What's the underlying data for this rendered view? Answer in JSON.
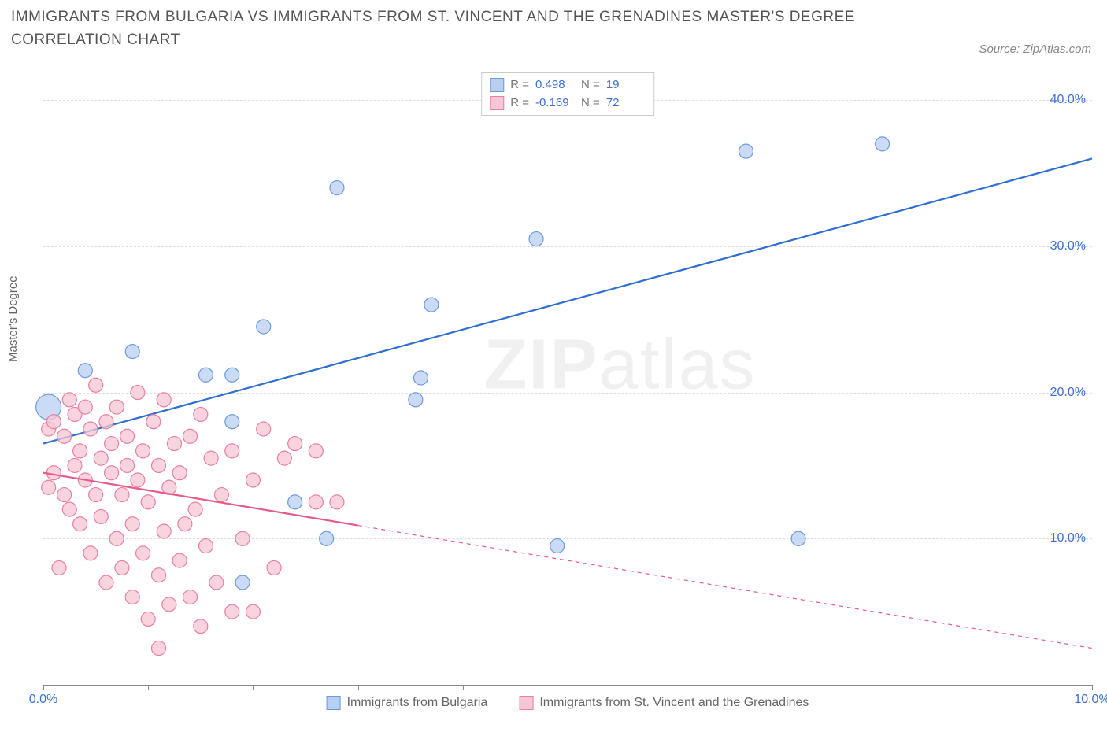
{
  "title": "IMMIGRANTS FROM BULGARIA VS IMMIGRANTS FROM ST. VINCENT AND THE GRENADINES MASTER'S DEGREE CORRELATION CHART",
  "source_label": "Source: ZipAtlas.com",
  "ylabel": "Master's Degree",
  "watermark": {
    "bold": "ZIP",
    "rest": "atlas"
  },
  "chart": {
    "type": "scatter",
    "background_color": "#ffffff",
    "grid_color": "#dddddd",
    "axis_color": "#888888",
    "xlim": [
      0,
      10
    ],
    "ylim": [
      0,
      42
    ],
    "xticks": [
      0,
      1,
      2,
      3,
      4,
      5,
      10
    ],
    "xtick_labels": {
      "0": "0.0%",
      "10": "10.0%"
    },
    "yticks": [
      10,
      20,
      30,
      40
    ],
    "ytick_labels": {
      "10": "10.0%",
      "20": "20.0%",
      "30": "30.0%",
      "40": "40.0%"
    },
    "marker_radius": 9,
    "marker_big_radius": 16,
    "line_width": 2.2,
    "series": [
      {
        "key": "bulgaria",
        "label": "Immigrants from Bulgaria",
        "color_fill": "#b9cff1",
        "color_stroke": "#6a9be0",
        "line_color": "#2f6fd0",
        "R": "0.498",
        "N": "19",
        "trend": {
          "x1": 0,
          "y1": 16.5,
          "x2": 10,
          "y2": 36.0,
          "solid_to_x": 10
        },
        "points": [
          [
            0.05,
            19.0,
            16
          ],
          [
            0.4,
            21.5,
            9
          ],
          [
            0.85,
            22.8,
            9
          ],
          [
            1.55,
            21.2,
            9
          ],
          [
            1.8,
            21.2,
            9
          ],
          [
            1.8,
            18.0,
            9
          ],
          [
            1.9,
            7.0,
            9
          ],
          [
            2.1,
            24.5,
            9
          ],
          [
            2.4,
            12.5,
            9
          ],
          [
            2.7,
            10.0,
            9
          ],
          [
            2.8,
            34.0,
            9
          ],
          [
            3.55,
            19.5,
            9
          ],
          [
            3.6,
            21.0,
            9
          ],
          [
            3.7,
            26.0,
            9
          ],
          [
            4.7,
            30.5,
            9
          ],
          [
            4.9,
            9.5,
            9
          ],
          [
            6.7,
            36.5,
            9
          ],
          [
            7.2,
            10.0,
            9
          ],
          [
            8.0,
            37.0,
            9
          ]
        ]
      },
      {
        "key": "stvincent",
        "label": "Immigrants from St. Vincent and the Grenadines",
        "color_fill": "#f7c6d4",
        "color_stroke": "#e87fa3",
        "line_color": "#e65a8a",
        "R": "-0.169",
        "N": "72",
        "trend": {
          "x1": 0,
          "y1": 14.5,
          "x2": 10,
          "y2": 2.5,
          "solid_to_x": 3.0
        },
        "points": [
          [
            0.05,
            13.5,
            9
          ],
          [
            0.05,
            17.5,
            9
          ],
          [
            0.1,
            14.5,
            9
          ],
          [
            0.1,
            18.0,
            9
          ],
          [
            0.15,
            8.0,
            9
          ],
          [
            0.2,
            13.0,
            9
          ],
          [
            0.2,
            17.0,
            9
          ],
          [
            0.25,
            19.5,
            9
          ],
          [
            0.25,
            12.0,
            9
          ],
          [
            0.3,
            15.0,
            9
          ],
          [
            0.3,
            18.5,
            9
          ],
          [
            0.35,
            11.0,
            9
          ],
          [
            0.35,
            16.0,
            9
          ],
          [
            0.4,
            14.0,
            9
          ],
          [
            0.4,
            19.0,
            9
          ],
          [
            0.45,
            9.0,
            9
          ],
          [
            0.45,
            17.5,
            9
          ],
          [
            0.5,
            13.0,
            9
          ],
          [
            0.5,
            20.5,
            9
          ],
          [
            0.55,
            15.5,
            9
          ],
          [
            0.55,
            11.5,
            9
          ],
          [
            0.6,
            18.0,
            9
          ],
          [
            0.6,
            7.0,
            9
          ],
          [
            0.65,
            14.5,
            9
          ],
          [
            0.65,
            16.5,
            9
          ],
          [
            0.7,
            10.0,
            9
          ],
          [
            0.7,
            19.0,
            9
          ],
          [
            0.75,
            13.0,
            9
          ],
          [
            0.75,
            8.0,
            9
          ],
          [
            0.8,
            15.0,
            9
          ],
          [
            0.8,
            17.0,
            9
          ],
          [
            0.85,
            6.0,
            9
          ],
          [
            0.85,
            11.0,
            9
          ],
          [
            0.9,
            14.0,
            9
          ],
          [
            0.9,
            20.0,
            9
          ],
          [
            0.95,
            9.0,
            9
          ],
          [
            0.95,
            16.0,
            9
          ],
          [
            1.0,
            4.5,
            9
          ],
          [
            1.0,
            12.5,
            9
          ],
          [
            1.05,
            18.0,
            9
          ],
          [
            1.1,
            7.5,
            9
          ],
          [
            1.1,
            15.0,
            9
          ],
          [
            1.15,
            10.5,
            9
          ],
          [
            1.15,
            19.5,
            9
          ],
          [
            1.2,
            5.5,
            9
          ],
          [
            1.2,
            13.5,
            9
          ],
          [
            1.25,
            16.5,
            9
          ],
          [
            1.3,
            8.5,
            9
          ],
          [
            1.3,
            14.5,
            9
          ],
          [
            1.35,
            11.0,
            9
          ],
          [
            1.4,
            6.0,
            9
          ],
          [
            1.4,
            17.0,
            9
          ],
          [
            1.45,
            12.0,
            9
          ],
          [
            1.5,
            4.0,
            9
          ],
          [
            1.5,
            18.5,
            9
          ],
          [
            1.55,
            9.5,
            9
          ],
          [
            1.6,
            15.5,
            9
          ],
          [
            1.65,
            7.0,
            9
          ],
          [
            1.7,
            13.0,
            9
          ],
          [
            1.8,
            5.0,
            9
          ],
          [
            1.8,
            16.0,
            9
          ],
          [
            1.9,
            10.0,
            9
          ],
          [
            2.0,
            5.0,
            9
          ],
          [
            2.0,
            14.0,
            9
          ],
          [
            2.1,
            17.5,
            9
          ],
          [
            2.2,
            8.0,
            9
          ],
          [
            2.3,
            15.5,
            9
          ],
          [
            2.4,
            16.5,
            9
          ],
          [
            2.6,
            12.5,
            9
          ],
          [
            2.6,
            16.0,
            9
          ],
          [
            2.8,
            12.5,
            9
          ],
          [
            1.1,
            2.5,
            9
          ]
        ]
      }
    ]
  },
  "legend_box": {
    "rows": [
      {
        "series": "bulgaria",
        "r_label": "R =",
        "n_label": "N ="
      },
      {
        "series": "stvincent",
        "r_label": "R =",
        "n_label": "N ="
      }
    ]
  }
}
